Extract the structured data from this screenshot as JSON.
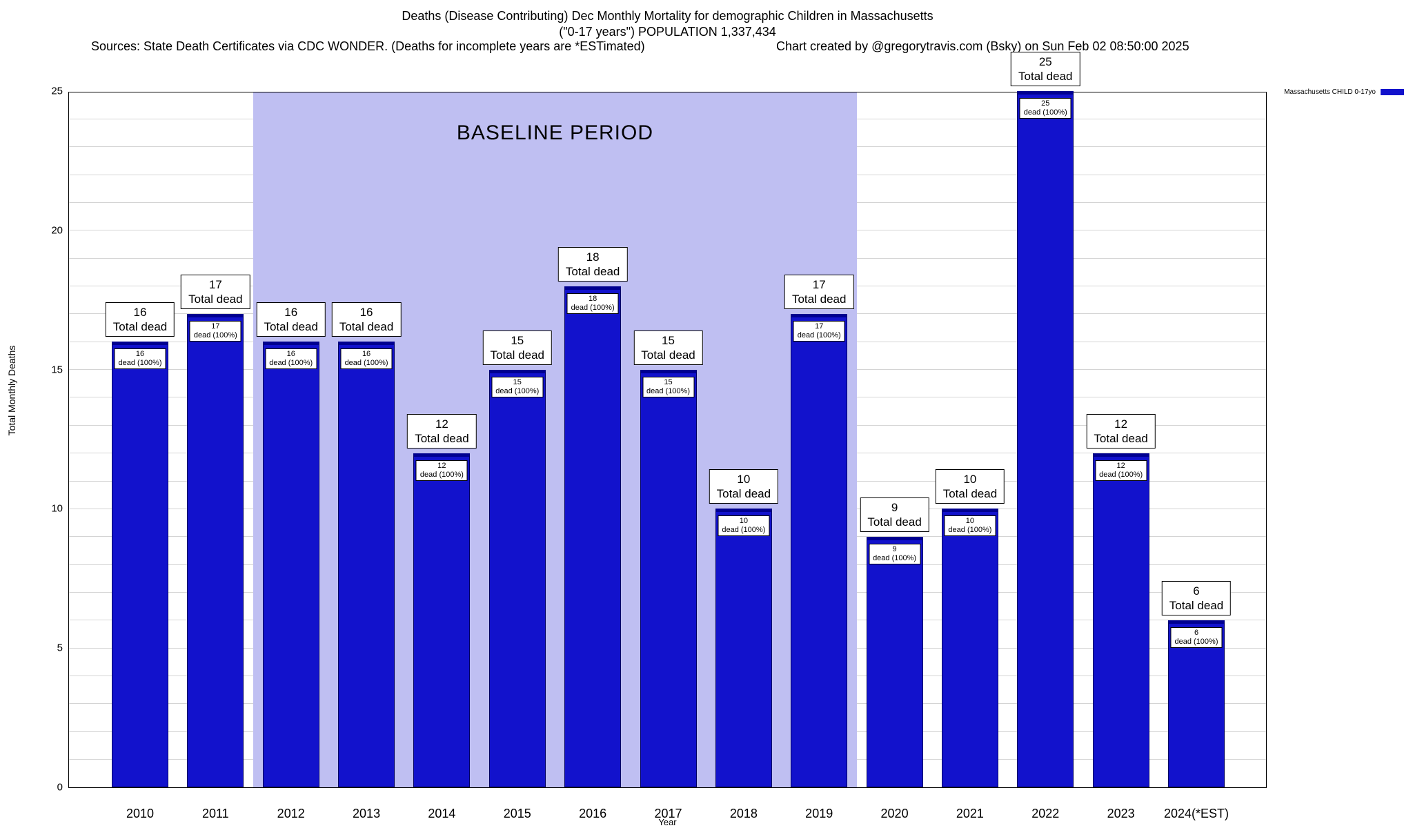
{
  "header": {
    "sources": "Sources: State Death Certificates via CDC WONDER. (Deaths for incomplete years are *ESTimated)",
    "credit": "Chart created by @gregorytravis.com (Bsky) on Sun Feb 02 08:50:00 2025"
  },
  "legend": {
    "label": "Massachusetts CHILD 0-17yo",
    "color": "#1212cc"
  },
  "chart_data": {
    "type": "bar",
    "title": "Deaths (Disease Contributing) Dec Monthly Mortality for demographic Children in Massachusetts",
    "subtitle": "(\"0-17 years\") POPULATION 1,337,434",
    "xlabel": "Year",
    "ylabel": "Total Monthly Deaths",
    "ylim": [
      0,
      25
    ],
    "ytick_step": 5,
    "grid_step": 1,
    "grid": true,
    "legend_position": "top-right",
    "categories": [
      "2010",
      "2011",
      "2012",
      "2013",
      "2014",
      "2015",
      "2016",
      "2017",
      "2018",
      "2019",
      "2020",
      "2021",
      "2022",
      "2023",
      "2024(*EST)"
    ],
    "values": [
      16,
      17,
      16,
      16,
      12,
      15,
      18,
      15,
      10,
      17,
      9,
      10,
      25,
      12,
      6
    ],
    "bar_color": "#1212cc",
    "bar_top_label_suffix": "Total dead",
    "bar_inner_label_suffix": "dead (100%)",
    "baseline_region": {
      "label": "BASELINE PERIOD",
      "start_index": 2,
      "end_index": 9,
      "start_year": "2012",
      "end_year": "2019",
      "fill": "#bfbff2"
    }
  }
}
